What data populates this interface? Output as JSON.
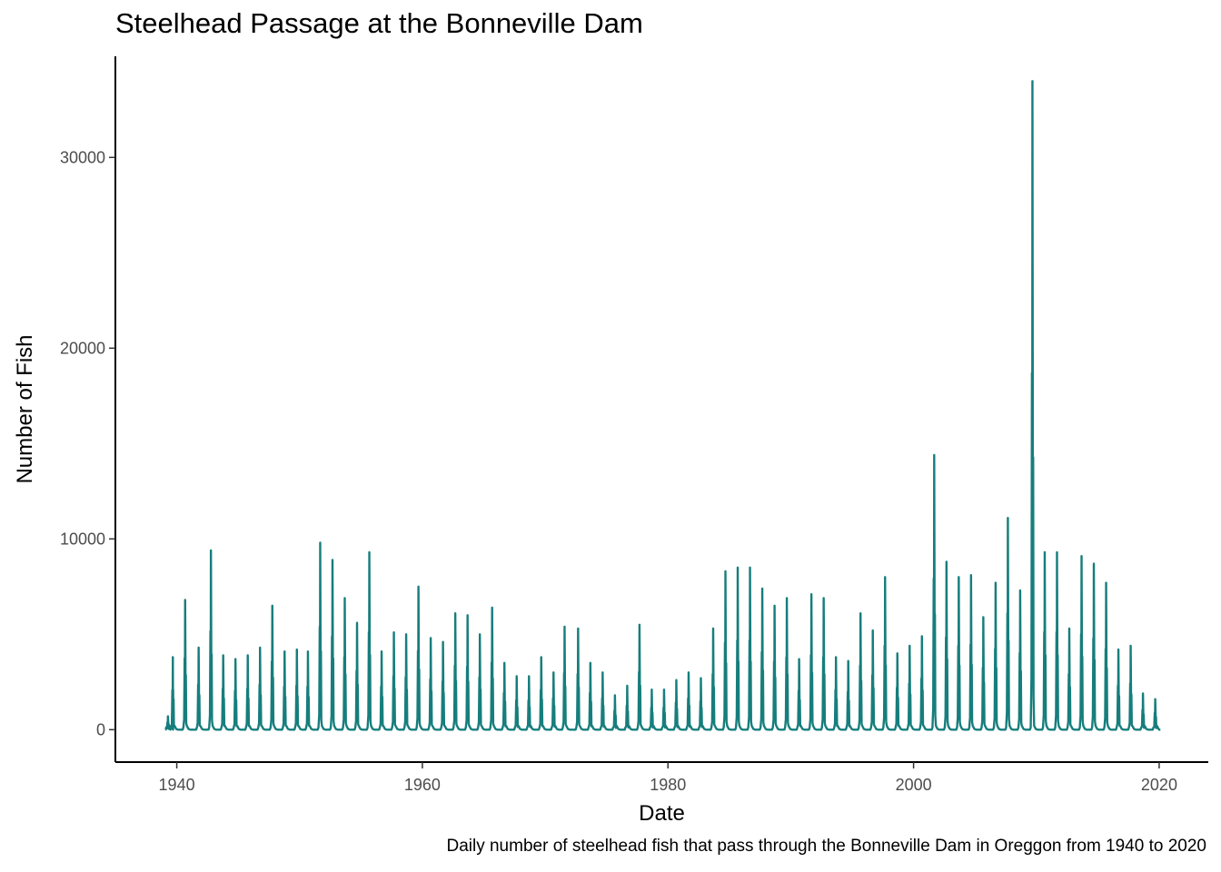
{
  "chart_data": {
    "type": "line",
    "title": "Steelhead Passage at the Bonneville Dam",
    "xlabel": "Date",
    "ylabel": "Number of Fish",
    "caption": "Daily number of steelhead fish that pass through the Bonneville Dam in Oreggon from 1940 to 2020",
    "xlim": [
      1935,
      2024
    ],
    "ylim": [
      -1700,
      35300
    ],
    "x_ticks": [
      "1940",
      "1960",
      "1980",
      "2000",
      "2020"
    ],
    "y_ticks": [
      "0",
      "10000",
      "20000",
      "30000"
    ],
    "grid": false,
    "legend": "none",
    "series_color": "#167e7c",
    "series": [
      {
        "peak_years": [
          1939.3,
          1939.7,
          1940.7,
          1941.8,
          1942.8,
          1943.8,
          1944.8,
          1945.8,
          1946.8,
          1947.8,
          1948.8,
          1949.8,
          1950.7,
          1951.7,
          1952.7,
          1953.7,
          1954.7,
          1955.7,
          1956.7,
          1957.7,
          1958.7,
          1959.7,
          1960.7,
          1961.7,
          1962.7,
          1963.7,
          1964.7,
          1965.7,
          1966.7,
          1967.7,
          1968.7,
          1969.7,
          1970.7,
          1971.6,
          1972.7,
          1973.7,
          1974.7,
          1975.7,
          1976.7,
          1977.7,
          1978.7,
          1979.7,
          1980.7,
          1981.7,
          1982.7,
          1983.7,
          1984.7,
          1985.7,
          1986.7,
          1987.7,
          1988.7,
          1989.7,
          1990.7,
          1991.7,
          1992.7,
          1993.7,
          1994.7,
          1995.7,
          1996.7,
          1997.7,
          1998.7,
          1999.7,
          2000.7,
          2001.7,
          2002.7,
          2003.7,
          2004.7,
          2005.7,
          2006.7,
          2007.7,
          2008.7,
          2009.7,
          2010.7,
          2011.7,
          2012.7,
          2013.7,
          2014.7,
          2015.7,
          2016.7,
          2017.7,
          2018.7,
          2019.7
        ],
        "peak_values": [
          700,
          3800,
          6800,
          4300,
          9400,
          3900,
          3700,
          3900,
          4300,
          6500,
          4100,
          4200,
          4100,
          9800,
          8900,
          6900,
          5600,
          9300,
          4100,
          5100,
          5000,
          7500,
          4800,
          4600,
          6100,
          6000,
          5000,
          6400,
          3500,
          2800,
          2800,
          3800,
          3000,
          5400,
          5300,
          3500,
          3000,
          1800,
          2300,
          5500,
          2100,
          2100,
          2600,
          3000,
          2700,
          5300,
          8300,
          8500,
          8500,
          7400,
          6500,
          6900,
          3700,
          7100,
          6900,
          3800,
          3600,
          6100,
          5200,
          8000,
          4000,
          4400,
          4900,
          14400,
          8800,
          8000,
          8100,
          5900,
          7700,
          11100,
          7300,
          34000,
          9300,
          9300,
          5300,
          9100,
          8700,
          7700,
          4200,
          4400,
          1900,
          1600
        ]
      }
    ]
  }
}
